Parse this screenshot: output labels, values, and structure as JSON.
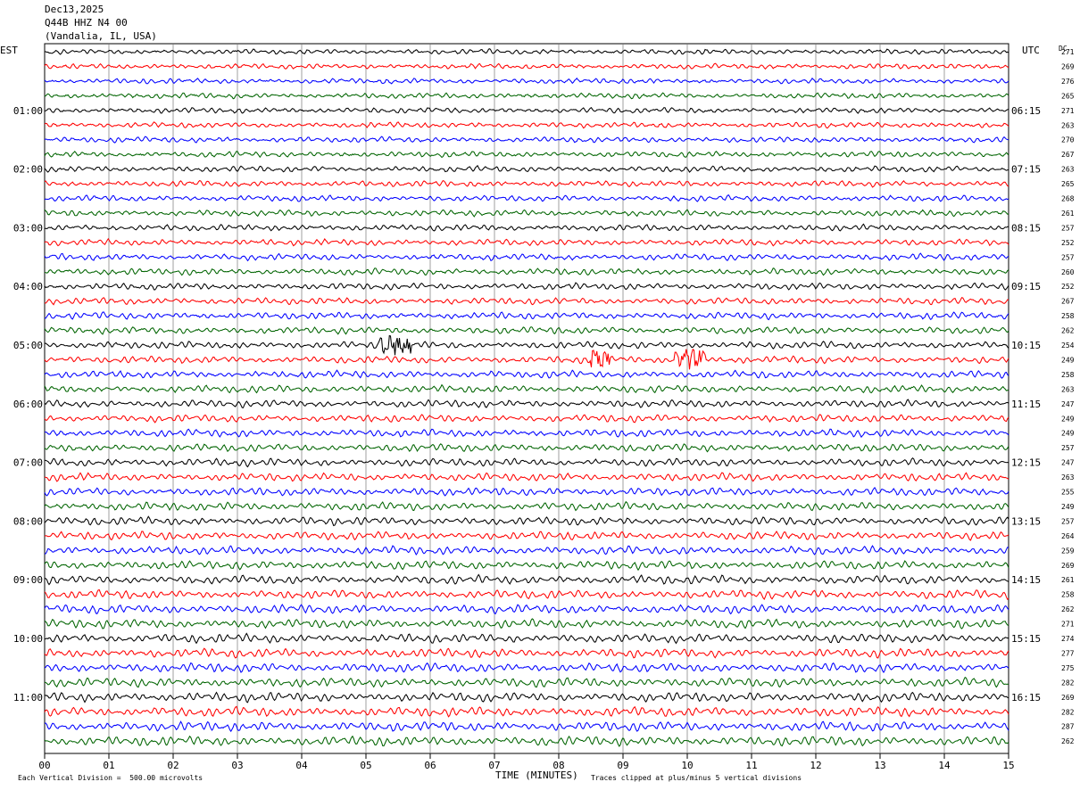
{
  "header": {
    "date": "Dec13,2025",
    "station": "Q44B HHZ N4 00",
    "location": "(Vandalia, IL, USA)"
  },
  "chart_data": {
    "type": "line",
    "title": "Dec13,2025",
    "left_axis_label": "EST",
    "right_axis_label": "UTC",
    "dc_label": "DC",
    "xlabel": "TIME (MINUTES)",
    "xlim": [
      0,
      15
    ],
    "x_ticks": [
      "00",
      "01",
      "02",
      "03",
      "04",
      "05",
      "06",
      "07",
      "08",
      "09",
      "10",
      "11",
      "12",
      "13",
      "14",
      "15"
    ],
    "left_hour_labels": [
      "01:00",
      "02:00",
      "03:00",
      "04:00",
      "05:00",
      "06:00",
      "07:00",
      "08:00",
      "09:00",
      "10:00",
      "11:00"
    ],
    "right_hour_labels": [
      "06:15",
      "07:15",
      "08:15",
      "09:15",
      "10:15",
      "11:15",
      "12:15",
      "13:15",
      "14:15",
      "15:15",
      "16:15"
    ],
    "trace_colors": [
      "#000000",
      "#ff0000",
      "#0000ff",
      "#006400"
    ],
    "dc_values": [
      271,
      269,
      276,
      265,
      271,
      263,
      270,
      267,
      263,
      265,
      268,
      261,
      257,
      252,
      257,
      260,
      252,
      267,
      258,
      262,
      254,
      249,
      258,
      263,
      247,
      249,
      249,
      257,
      247,
      263,
      255,
      249,
      257,
      264,
      259,
      269,
      261,
      258,
      262,
      271,
      274,
      277,
      275,
      282,
      269,
      282,
      287,
      262
    ],
    "events": [
      {
        "trace_index": 20,
        "minute_start": 5.2,
        "minute_end": 5.7
      },
      {
        "trace_index": 21,
        "minute_start": 8.5,
        "minute_end": 8.8
      },
      {
        "trace_index": 21,
        "minute_start": 9.8,
        "minute_end": 10.3
      }
    ],
    "footer_scale": "Each Vertical Division =  500.00 microvolts",
    "footer_clip": "Traces clipped at plus/minus 5 vertical divisions"
  }
}
